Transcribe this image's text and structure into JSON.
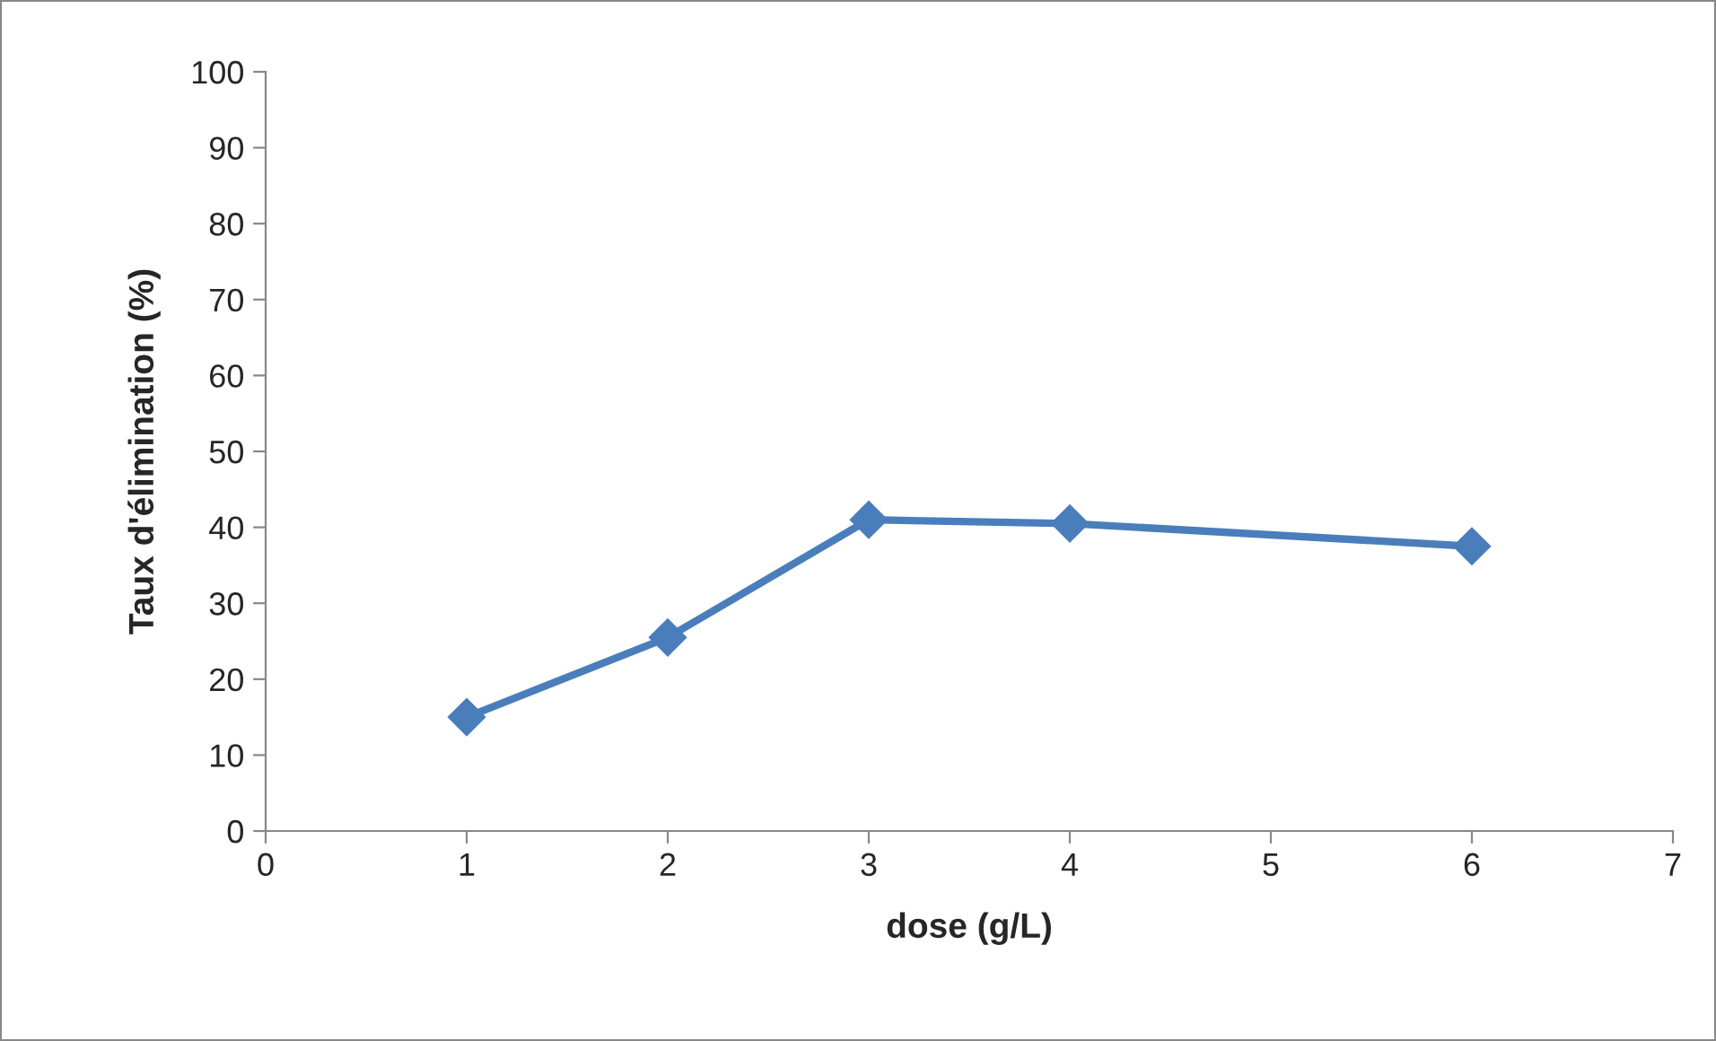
{
  "chart_data": {
    "type": "line",
    "xlabel": "dose (g/L)",
    "ylabel": "Taux d'élimination (%)",
    "series": [
      {
        "color": "#4a7ebb",
        "x": [
          1,
          2,
          3,
          4,
          6
        ],
        "values": [
          15,
          25.5,
          41,
          40.5,
          37.5
        ]
      }
    ],
    "xlim": [
      0,
      7
    ],
    "xticks": [
      0,
      1,
      2,
      3,
      4,
      5,
      6,
      7
    ],
    "ylim": [
      0,
      100
    ],
    "yticks": [
      0,
      10,
      20,
      30,
      40,
      50,
      60,
      70,
      80,
      90,
      100
    ],
    "grid": false,
    "legend": false,
    "marker": "diamond",
    "line_style": "solid"
  }
}
